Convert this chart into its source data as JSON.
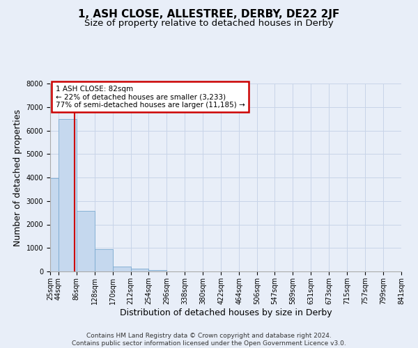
{
  "title": "1, ASH CLOSE, ALLESTREE, DERBY, DE22 2JF",
  "subtitle": "Size of property relative to detached houses in Derby",
  "xlabel": "Distribution of detached houses by size in Derby",
  "ylabel": "Number of detached properties",
  "bin_edges": [
    25,
    44,
    86,
    128,
    170,
    212,
    254,
    296,
    338,
    380,
    422,
    464,
    506,
    547,
    589,
    631,
    673,
    715,
    757,
    799,
    841
  ],
  "bar_heights": [
    3980,
    6480,
    2580,
    940,
    195,
    105,
    55,
    10,
    5,
    0,
    0,
    0,
    0,
    0,
    0,
    0,
    0,
    0,
    0,
    0
  ],
  "bar_color": "#c5d8ee",
  "bar_edge_color": "#7aaad0",
  "property_size": 82,
  "vline_color": "#cc0000",
  "annotation_text": "1 ASH CLOSE: 82sqm\n← 22% of detached houses are smaller (3,233)\n77% of semi-detached houses are larger (11,185) →",
  "annotation_box_color": "#ffffff",
  "annotation_box_edge_color": "#cc0000",
  "ylim": [
    0,
    8000
  ],
  "yticks": [
    0,
    1000,
    2000,
    3000,
    4000,
    5000,
    6000,
    7000,
    8000
  ],
  "tick_labels": [
    "25sqm",
    "44sqm",
    "86sqm",
    "128sqm",
    "170sqm",
    "212sqm",
    "254sqm",
    "296sqm",
    "338sqm",
    "380sqm",
    "422sqm",
    "464sqm",
    "506sqm",
    "547sqm",
    "589sqm",
    "631sqm",
    "673sqm",
    "715sqm",
    "757sqm",
    "799sqm",
    "841sqm"
  ],
  "footer_text": "Contains HM Land Registry data © Crown copyright and database right 2024.\nContains public sector information licensed under the Open Government Licence v3.0.",
  "bg_color": "#e8eef8",
  "plot_bg_color": "#e8eef8",
  "grid_color": "#c8d4e8",
  "title_fontsize": 11,
  "subtitle_fontsize": 9.5,
  "axis_label_fontsize": 9,
  "tick_fontsize": 7,
  "footer_fontsize": 6.5,
  "annotation_fontsize": 7.5
}
